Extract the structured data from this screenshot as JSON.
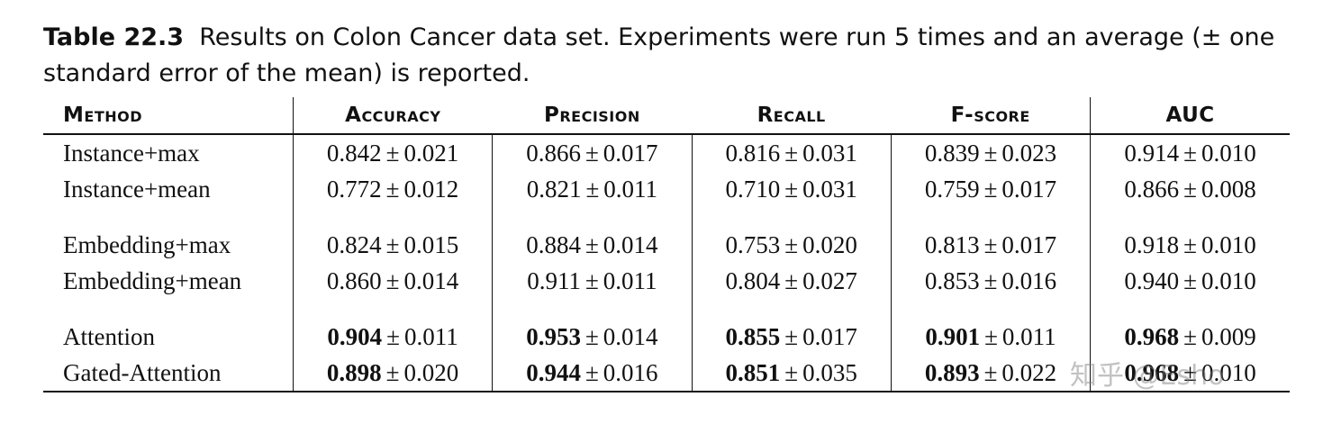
{
  "caption": {
    "label": "Table 22.3",
    "text": "Results on Colon Cancer data set. Experiments were run 5 times and an average (± one standard error of the mean) is reported."
  },
  "headers": [
    "Method",
    "Accuracy",
    "Precision",
    "Recall",
    "F-score",
    "AUC"
  ],
  "rows": [
    {
      "method": "Instance+max",
      "cells": [
        {
          "v": "0.842",
          "e": "0.021",
          "bold": false
        },
        {
          "v": "0.866",
          "e": "0.017",
          "bold": false
        },
        {
          "v": "0.816",
          "e": "0.031",
          "bold": false
        },
        {
          "v": "0.839",
          "e": "0.023",
          "bold": false
        },
        {
          "v": "0.914",
          "e": "0.010",
          "bold": false
        }
      ]
    },
    {
      "method": "Instance+mean",
      "cells": [
        {
          "v": "0.772",
          "e": "0.012",
          "bold": false
        },
        {
          "v": "0.821",
          "e": "0.011",
          "bold": false
        },
        {
          "v": "0.710",
          "e": "0.031",
          "bold": false
        },
        {
          "v": "0.759",
          "e": "0.017",
          "bold": false
        },
        {
          "v": "0.866",
          "e": "0.008",
          "bold": false
        }
      ]
    },
    {
      "gap": true
    },
    {
      "method": "Embedding+max",
      "cells": [
        {
          "v": "0.824",
          "e": "0.015",
          "bold": false
        },
        {
          "v": "0.884",
          "e": "0.014",
          "bold": false
        },
        {
          "v": "0.753",
          "e": "0.020",
          "bold": false
        },
        {
          "v": "0.813",
          "e": "0.017",
          "bold": false
        },
        {
          "v": "0.918",
          "e": "0.010",
          "bold": false
        }
      ]
    },
    {
      "method": "Embedding+mean",
      "cells": [
        {
          "v": "0.860",
          "e": "0.014",
          "bold": false
        },
        {
          "v": "0.911",
          "e": "0.011",
          "bold": false
        },
        {
          "v": "0.804",
          "e": "0.027",
          "bold": false
        },
        {
          "v": "0.853",
          "e": "0.016",
          "bold": false
        },
        {
          "v": "0.940",
          "e": "0.010",
          "bold": false
        }
      ]
    },
    {
      "gap": true
    },
    {
      "method": "Attention",
      "cells": [
        {
          "v": "0.904",
          "e": "0.011",
          "bold": true
        },
        {
          "v": "0.953",
          "e": "0.014",
          "bold": true
        },
        {
          "v": "0.855",
          "e": "0.017",
          "bold": true
        },
        {
          "v": "0.901",
          "e": "0.011",
          "bold": true
        },
        {
          "v": "0.968",
          "e": "0.009",
          "bold": true
        }
      ]
    },
    {
      "method": "Gated-Attention",
      "cells": [
        {
          "v": "0.898",
          "e": "0.020",
          "bold": true
        },
        {
          "v": "0.944",
          "e": "0.016",
          "bold": true
        },
        {
          "v": "0.851",
          "e": "0.035",
          "bold": true
        },
        {
          "v": "0.893",
          "e": "0.022",
          "bold": true
        },
        {
          "v": "0.968",
          "e": "0.010",
          "bold": true
        }
      ]
    }
  ],
  "pm": "±",
  "watermark": "知乎 @Esho"
}
